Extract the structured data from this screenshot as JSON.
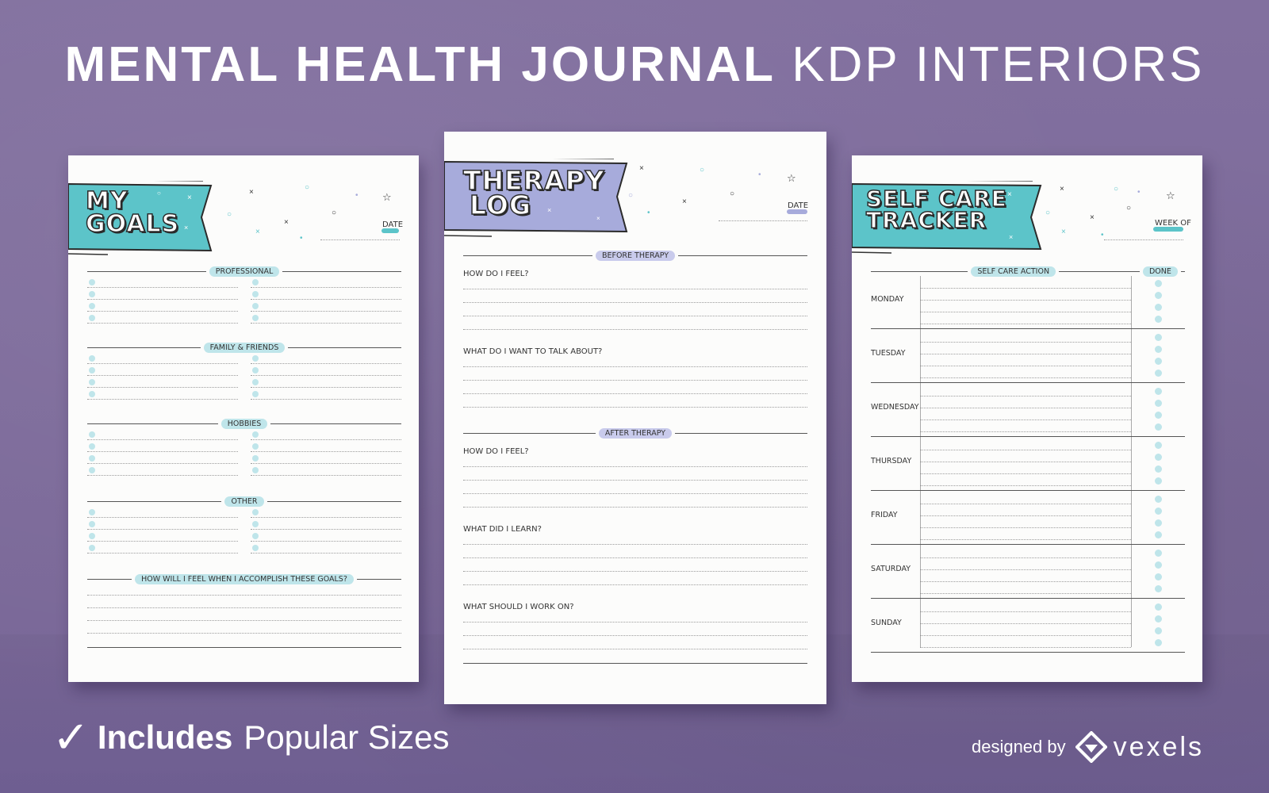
{
  "header": {
    "title_bold": "MENTAL HEALTH JOURNAL",
    "title_light": "KDP INTERIORS"
  },
  "colors": {
    "background": "#7e6c9c",
    "teal": "#5cc4c9",
    "lavender": "#a7abdb",
    "dot": "#bfe5ea"
  },
  "pages": {
    "goals": {
      "banner_line1": "MY",
      "banner_line2": "GOALS",
      "date_label": "DATE",
      "sections": [
        "PROFESSIONAL",
        "FAMILY & FRIENDS",
        "HOBBIES",
        "OTHER"
      ],
      "reflection": "HOW WILL I FEEL WHEN I ACCOMPLISH THESE GOALS?"
    },
    "therapy": {
      "banner_line1": "THERAPY",
      "banner_line2": "LOG",
      "date_label": "DATE",
      "before": "BEFORE THERAPY",
      "q1": "HOW DO I FEEL?",
      "q2": "WHAT DO I WANT TO TALK ABOUT?",
      "after": "AFTER THERAPY",
      "q3": "HOW DO I FEEL?",
      "q4": "WHAT DID I LEARN?",
      "q5": "WHAT SHOULD I WORK ON?"
    },
    "selfcare": {
      "banner_line1": "SELF CARE",
      "banner_line2": "TRACKER",
      "week_label": "WEEK OF",
      "col_action": "SELF CARE ACTION",
      "col_done": "DONE",
      "days": [
        "MONDAY",
        "TUESDAY",
        "WEDNESDAY",
        "THURSDAY",
        "FRIDAY",
        "SATURDAY",
        "SUNDAY"
      ]
    }
  },
  "footer": {
    "check": "✓",
    "includes": "Includes",
    "sizes": "Popular Sizes",
    "designed_by": "designed by",
    "brand": "vexels"
  }
}
